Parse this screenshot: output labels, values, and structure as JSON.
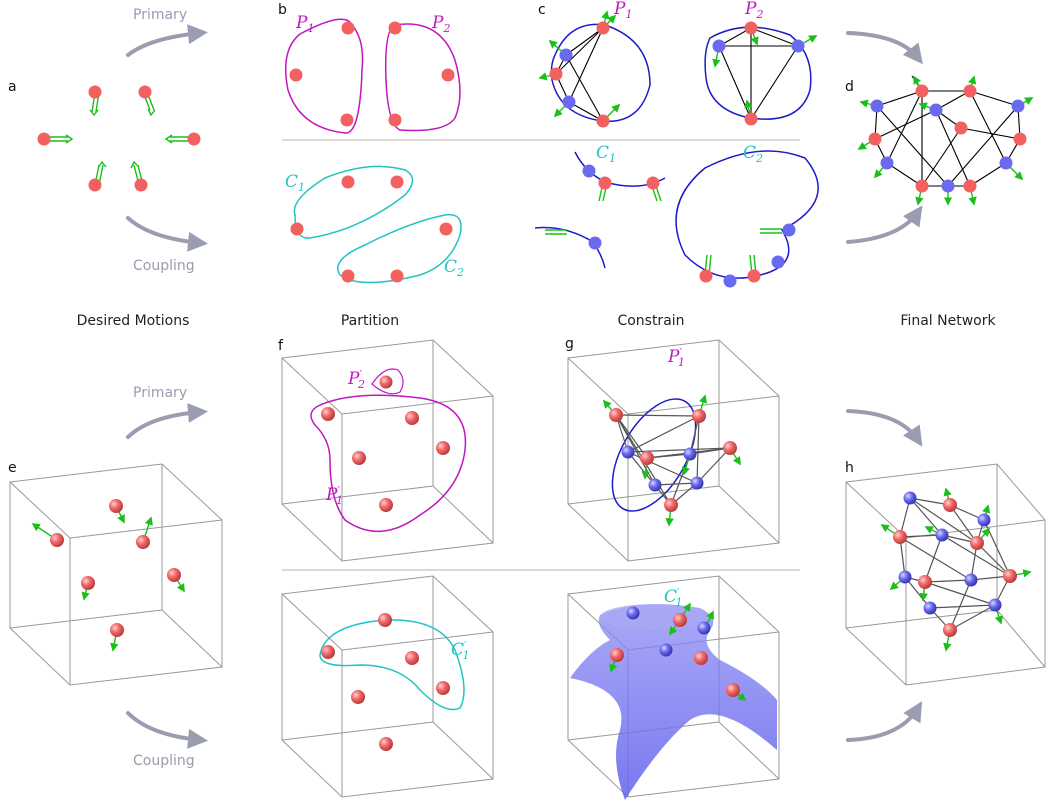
{
  "panel_labels": {
    "a": "a",
    "b": "b",
    "c": "c",
    "d": "d",
    "e": "e",
    "f": "f",
    "g": "g",
    "h": "h"
  },
  "column_titles": {
    "desired": "Desired Motions",
    "partition": "Partition",
    "constrain": "Constrain",
    "final": "Final Network"
  },
  "flow_labels": {
    "primary": "Primary",
    "coupling": "Coupling"
  },
  "sets_2d": {
    "p1": {
      "base": "P",
      "sub": "1"
    },
    "p2": {
      "base": "P",
      "sub": "2"
    },
    "c1": {
      "base": "C",
      "sub": "1"
    },
    "c2": {
      "base": "C",
      "sub": "2"
    }
  },
  "sets_3d": {
    "p1": {
      "base": "P",
      "sub": "1",
      "prime": "′"
    },
    "p2": {
      "base": "P",
      "sub": "2",
      "prime": "′"
    },
    "c1": {
      "base": "C",
      "sub": "1",
      "prime": "′"
    }
  },
  "colors": {
    "node_red": "#f26060",
    "node_blue": "#6a6af0",
    "motion_green": "#18c018",
    "primary_set": "#c018c0",
    "coupling_set": "#1fc4c4",
    "constraint_curve": "#1c1cc8",
    "flow_arrow": "#9a9cb0",
    "box": "#888888"
  }
}
